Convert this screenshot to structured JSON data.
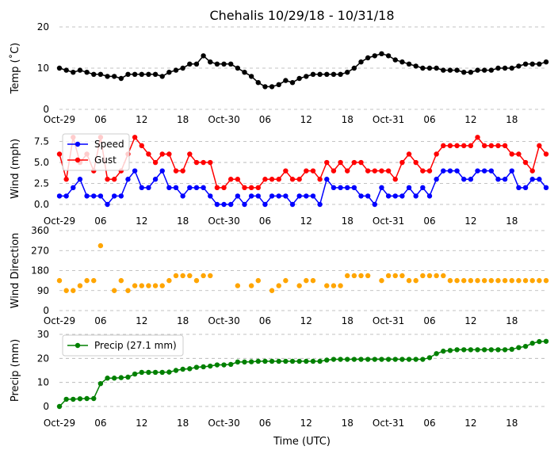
{
  "chart_data": [
    {
      "type": "line",
      "title": "Chehalis 10/29/18 - 10/31/18",
      "ylabel": "Temp ($^\\circ$C)",
      "ylabel_display": "Temp (˚C)",
      "ylim": [
        0,
        20
      ],
      "yticks": [
        0,
        10,
        20
      ],
      "grid": "y-dashed",
      "x": [
        0,
        1,
        2,
        3,
        4,
        5,
        6,
        7,
        8,
        9,
        10,
        11,
        12,
        13,
        14,
        15,
        16,
        17,
        18,
        19,
        20,
        21,
        22,
        23,
        24,
        25,
        26,
        27,
        28,
        29,
        30,
        31,
        32,
        33,
        34,
        35,
        36,
        37,
        38,
        39,
        40,
        41,
        42,
        43,
        44,
        45,
        46,
        47,
        48,
        49,
        50,
        51,
        52,
        53,
        54,
        55,
        56,
        57,
        58,
        59,
        60,
        61,
        62,
        63,
        64,
        65,
        66,
        67,
        68,
        69,
        70,
        71
      ],
      "series": [
        {
          "name": "",
          "color": "#000000",
          "values": [
            10,
            9.5,
            9,
            9.5,
            9,
            8.5,
            8.5,
            8,
            8,
            7.5,
            8.5,
            8.5,
            8.5,
            8.5,
            8.5,
            8,
            9,
            9.5,
            10,
            11,
            11,
            13,
            11.5,
            11,
            11,
            11,
            10,
            9,
            8,
            6.5,
            5.5,
            5.5,
            6,
            7,
            6.5,
            7.5,
            8,
            8.5,
            8.5,
            8.5,
            8.5,
            8.5,
            9,
            10,
            11.5,
            12.5,
            13,
            13.5,
            13,
            12,
            11.5,
            11,
            10.5,
            10,
            10,
            10,
            9.5,
            9.5,
            9.5,
            9,
            9,
            9.5,
            9.5,
            9.5,
            10,
            10,
            10,
            10.5,
            11,
            11,
            11,
            11.5
          ]
        }
      ]
    },
    {
      "type": "line",
      "ylabel": "Wind (mph)",
      "ylim": [
        0,
        8.5
      ],
      "yticks": [
        0.0,
        2.5,
        5.0,
        7.5
      ],
      "ytick_labels": [
        "0.0",
        "2.5",
        "5.0",
        "7.5"
      ],
      "legend": "upper-left",
      "x": [
        0,
        1,
        2,
        3,
        4,
        5,
        6,
        7,
        8,
        9,
        10,
        11,
        12,
        13,
        14,
        15,
        16,
        17,
        18,
        19,
        20,
        21,
        22,
        23,
        24,
        25,
        26,
        27,
        28,
        29,
        30,
        31,
        32,
        33,
        34,
        35,
        36,
        37,
        38,
        39,
        40,
        41,
        42,
        43,
        44,
        45,
        46,
        47,
        48,
        49,
        50,
        51,
        52,
        53,
        54,
        55,
        56,
        57,
        58,
        59,
        60,
        61,
        62,
        63,
        64,
        65,
        66,
        67,
        68,
        69,
        70,
        71
      ],
      "series": [
        {
          "name": "Speed",
          "color": "#0000ff",
          "values": [
            1,
            1,
            2,
            3,
            1,
            1,
            1,
            0,
            1,
            1,
            3,
            4,
            2,
            2,
            3,
            4,
            2,
            2,
            1,
            2,
            2,
            2,
            1,
            0,
            0,
            0,
            1,
            0,
            1,
            1,
            0,
            1,
            1,
            1,
            0,
            1,
            1,
            1,
            0,
            3,
            2,
            2,
            2,
            2,
            1,
            1,
            0,
            2,
            1,
            1,
            1,
            2,
            1,
            2,
            1,
            3,
            4,
            4,
            4,
            3,
            3,
            4,
            4,
            4,
            3,
            3,
            4,
            2,
            2,
            3,
            3,
            2
          ]
        },
        {
          "name": "Gust",
          "color": "#ff0000",
          "values": [
            6,
            3,
            8,
            5,
            6,
            4,
            8,
            3,
            3,
            4,
            6,
            8,
            7,
            6,
            5,
            6,
            6,
            4,
            4,
            6,
            5,
            5,
            5,
            2,
            2,
            3,
            3,
            2,
            2,
            2,
            3,
            3,
            3,
            4,
            3,
            3,
            4,
            4,
            3,
            5,
            4,
            5,
            4,
            5,
            5,
            4,
            4,
            4,
            4,
            3,
            5,
            6,
            5,
            4,
            4,
            6,
            7,
            7,
            7,
            7,
            7,
            8,
            7,
            7,
            7,
            7,
            6,
            6,
            5,
            4,
            7,
            6
          ]
        }
      ]
    },
    {
      "type": "scatter",
      "ylabel": "Wind Direction",
      "ylim": [
        0,
        360
      ],
      "yticks": [
        0,
        90,
        180,
        270,
        360
      ],
      "color": "#ffa500",
      "points": [
        [
          0,
          135
        ],
        [
          1,
          90
        ],
        [
          2,
          90
        ],
        [
          3,
          112
        ],
        [
          4,
          135
        ],
        [
          5,
          135
        ],
        [
          6,
          292
        ],
        [
          8,
          90
        ],
        [
          9,
          135
        ],
        [
          10,
          90
        ],
        [
          11,
          112
        ],
        [
          12,
          112
        ],
        [
          13,
          112
        ],
        [
          14,
          112
        ],
        [
          15,
          112
        ],
        [
          16,
          135
        ],
        [
          17,
          157
        ],
        [
          18,
          157
        ],
        [
          19,
          157
        ],
        [
          20,
          135
        ],
        [
          21,
          157
        ],
        [
          22,
          157
        ],
        [
          26,
          112
        ],
        [
          28,
          112
        ],
        [
          29,
          135
        ],
        [
          31,
          90
        ],
        [
          32,
          112
        ],
        [
          33,
          135
        ],
        [
          35,
          112
        ],
        [
          36,
          135
        ],
        [
          37,
          135
        ],
        [
          39,
          112
        ],
        [
          40,
          112
        ],
        [
          41,
          112
        ],
        [
          42,
          157
        ],
        [
          43,
          157
        ],
        [
          44,
          157
        ],
        [
          45,
          157
        ],
        [
          47,
          135
        ],
        [
          48,
          157
        ],
        [
          49,
          157
        ],
        [
          50,
          157
        ],
        [
          51,
          135
        ],
        [
          52,
          135
        ],
        [
          53,
          157
        ],
        [
          54,
          157
        ],
        [
          55,
          157
        ],
        [
          56,
          157
        ],
        [
          57,
          135
        ],
        [
          58,
          135
        ],
        [
          59,
          135
        ],
        [
          60,
          135
        ],
        [
          61,
          135
        ],
        [
          62,
          135
        ],
        [
          63,
          135
        ],
        [
          64,
          135
        ],
        [
          65,
          135
        ],
        [
          66,
          135
        ],
        [
          67,
          135
        ],
        [
          68,
          135
        ],
        [
          69,
          135
        ],
        [
          70,
          135
        ],
        [
          71,
          135
        ]
      ]
    },
    {
      "type": "line",
      "ylabel": "Precip (mm)",
      "xlabel": "Time (UTC)",
      "ylim": [
        0,
        30
      ],
      "yticks": [
        0,
        10,
        20,
        30
      ],
      "legend": "upper-left",
      "x": [
        0,
        1,
        2,
        3,
        4,
        5,
        6,
        7,
        8,
        9,
        10,
        11,
        12,
        13,
        14,
        15,
        16,
        17,
        18,
        19,
        20,
        21,
        22,
        23,
        24,
        25,
        26,
        27,
        28,
        29,
        30,
        31,
        32,
        33,
        34,
        35,
        36,
        37,
        38,
        39,
        40,
        41,
        42,
        43,
        44,
        45,
        46,
        47,
        48,
        49,
        50,
        51,
        52,
        53,
        54,
        55,
        56,
        57,
        58,
        59,
        60,
        61,
        62,
        63,
        64,
        65,
        66,
        67,
        68,
        69,
        70,
        71
      ],
      "series": [
        {
          "name": "Precip (27.1 mm)",
          "color": "#008000",
          "values": [
            0,
            3,
            3,
            3.2,
            3.3,
            3.3,
            9.5,
            11.8,
            11.8,
            12,
            12.2,
            13.5,
            14.2,
            14.2,
            14.2,
            14.2,
            14.3,
            15,
            15.5,
            15.7,
            16.3,
            16.5,
            16.8,
            17.3,
            17.3,
            17.5,
            18.5,
            18.5,
            18.6,
            18.8,
            18.8,
            18.8,
            18.8,
            18.8,
            18.8,
            18.8,
            18.8,
            18.8,
            18.8,
            19.3,
            19.6,
            19.6,
            19.6,
            19.6,
            19.6,
            19.6,
            19.6,
            19.6,
            19.6,
            19.6,
            19.6,
            19.6,
            19.6,
            19.6,
            20.3,
            22,
            23,
            23.3,
            23.6,
            23.6,
            23.6,
            23.6,
            23.6,
            23.6,
            23.6,
            23.6,
            23.8,
            24.5,
            25,
            26.3,
            27,
            27.1
          ]
        }
      ]
    }
  ],
  "x_ticks": {
    "positions": [
      0,
      6,
      12,
      18,
      24,
      30,
      36,
      42,
      48,
      54,
      60,
      66
    ],
    "labels": [
      "Oct-29",
      "06",
      "12",
      "18",
      "Oct-30",
      "06",
      "12",
      "18",
      "Oct-31",
      "06",
      "12",
      "18"
    ]
  },
  "xlim": [
    0,
    71
  ]
}
